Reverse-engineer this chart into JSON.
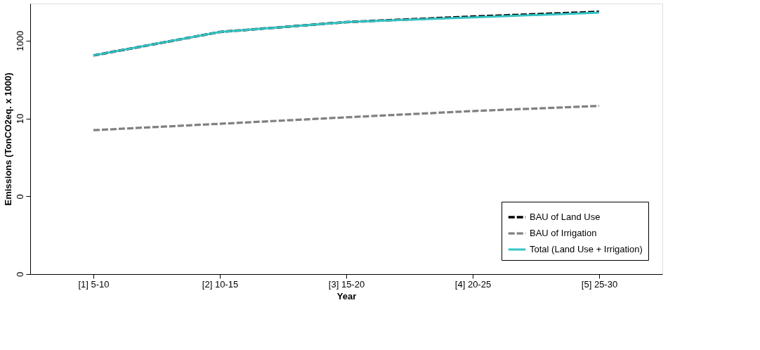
{
  "chart_data": {
    "type": "line",
    "xlabel": "Year",
    "ylabel": "Emissions (TonCO2eq. x 1000)",
    "categories": [
      "[1] 5-10",
      "[2] 10-15",
      "[3] 15-20",
      "[4] 20-25",
      "[5] 25-30"
    ],
    "series": [
      {
        "name": "BAU of Land Use",
        "color": "#000000",
        "line_style": "dashed",
        "values": [
          417,
          1670,
          3000,
          4150,
          5500
        ]
      },
      {
        "name": "BAU of Irrigation",
        "color": "#808080",
        "line_style": "dashed",
        "values": [
          5.0,
          7.3,
          10.7,
          15.5,
          21
        ]
      },
      {
        "name": "Total (Land Use + Irrigation)",
        "color": "#33c4c4",
        "line_style": "solid",
        "values": [
          417,
          1670,
          3000,
          3950,
          5250
        ]
      }
    ],
    "log": "y",
    "ylim": [
      0.001,
      9000
    ],
    "yticks": [
      {
        "value": 0.001,
        "label": "0"
      },
      {
        "value": 0.1,
        "label": "0"
      },
      10,
      1000
    ],
    "grid": false,
    "legend": "bottom right",
    "marker": "none"
  }
}
